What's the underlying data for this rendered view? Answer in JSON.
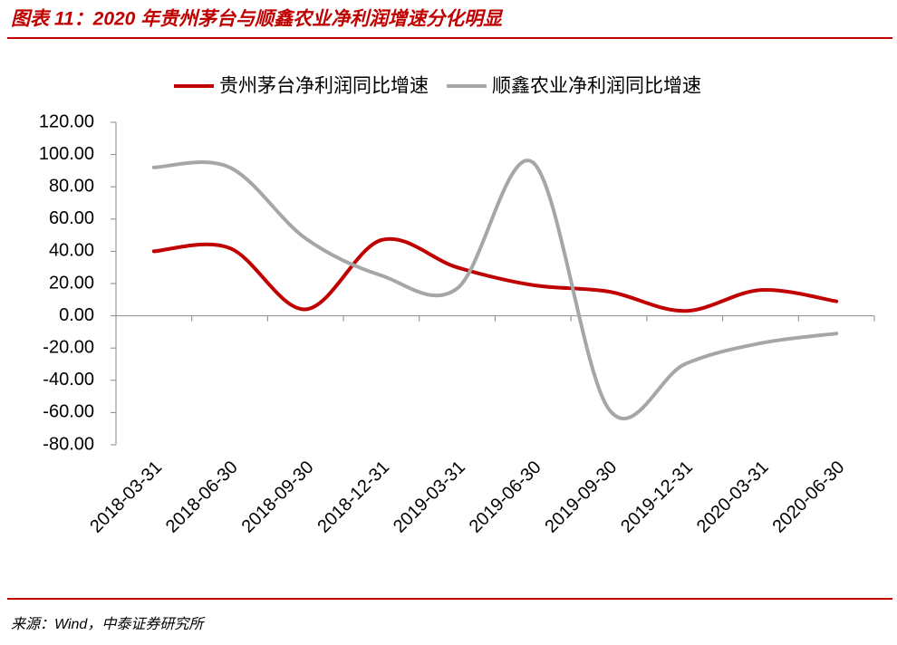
{
  "chart_data": {
    "type": "line",
    "title": "图表 11：2020 年贵州茅台与顺鑫农业净利润增速分化明显",
    "source": "来源：Wind，中泰证券研究所",
    "categories": [
      "2018-03-31",
      "2018-06-30",
      "2018-09-30",
      "2018-12-31",
      "2019-03-31",
      "2019-06-30",
      "2019-09-30",
      "2019-12-31",
      "2020-03-31",
      "2020-06-30"
    ],
    "series": [
      {
        "name": "贵州茅台净利润同比增速",
        "color": "#c00000",
        "values": [
          40,
          42,
          4,
          47,
          30,
          19,
          15,
          3,
          16,
          9
        ]
      },
      {
        "name": "顺鑫农业净利润同比增速",
        "color": "#a6a6a6",
        "values": [
          92,
          92,
          48,
          25,
          17,
          95,
          -58,
          -30,
          -17,
          -11
        ]
      }
    ],
    "ylim": [
      -80,
      120
    ],
    "yticks": [
      {
        "value": -80,
        "label": "-80.00"
      },
      {
        "value": -60,
        "label": "-60.00"
      },
      {
        "value": -40,
        "label": "-40.00"
      },
      {
        "value": -20,
        "label": "-20.00"
      },
      {
        "value": 0,
        "label": "0.00"
      },
      {
        "value": 20,
        "label": "20.00"
      },
      {
        "value": 40,
        "label": "40.00"
      },
      {
        "value": 60,
        "label": "60.00"
      },
      {
        "value": 80,
        "label": "80.00"
      },
      {
        "value": 100,
        "label": "100.00"
      },
      {
        "value": 120,
        "label": "120.00"
      }
    ],
    "legend": "top",
    "grid": false,
    "smooth": true
  }
}
